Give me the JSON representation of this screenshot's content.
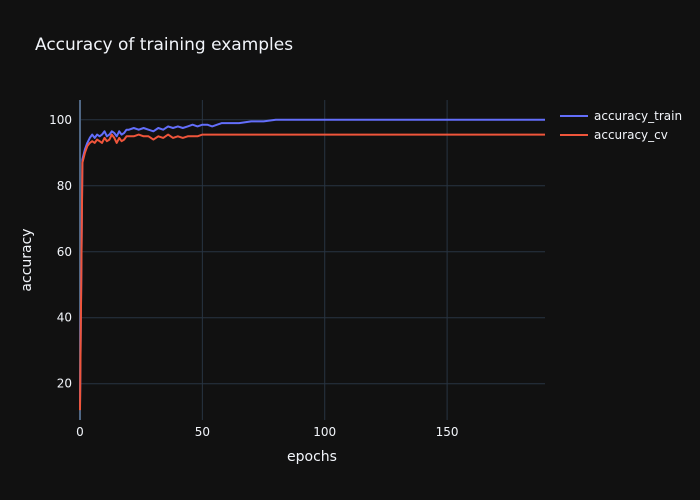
{
  "chart_data": {
    "type": "line",
    "title": "Accuracy of training examples",
    "xlabel": "epochs",
    "ylabel": "accuracy",
    "xlim": [
      0,
      190
    ],
    "ylim": [
      9,
      106
    ],
    "xticks": [
      0,
      50,
      100,
      150
    ],
    "yticks": [
      20,
      40,
      60,
      80,
      100
    ],
    "grid": true,
    "legend_position": "right-top",
    "series": [
      {
        "name": "accuracy_train",
        "color": "#636efa",
        "x": [
          0,
          1,
          2,
          3,
          4,
          5,
          6,
          7,
          8,
          9,
          10,
          11,
          12,
          13,
          14,
          15,
          16,
          17,
          18,
          19,
          20,
          22,
          24,
          26,
          28,
          30,
          32,
          34,
          36,
          38,
          40,
          42,
          44,
          46,
          48,
          50,
          52,
          54,
          56,
          58,
          60,
          65,
          70,
          75,
          80,
          85,
          90,
          100,
          110,
          120,
          130,
          140,
          150,
          160,
          170,
          180,
          190
        ],
        "y": [
          13,
          88,
          91,
          93,
          94.5,
          95.5,
          94.5,
          95.5,
          95,
          95.5,
          96.5,
          95,
          95.5,
          96.5,
          96,
          95,
          96.5,
          95.5,
          96,
          97,
          97,
          97.5,
          97,
          97.5,
          97,
          96.5,
          97.5,
          97,
          98,
          97.5,
          98,
          97.5,
          98,
          98.5,
          98,
          98.5,
          98.5,
          98,
          98.5,
          99,
          99,
          99,
          99.5,
          99.5,
          100,
          100,
          100,
          100,
          100,
          100,
          100,
          100,
          100,
          100,
          100,
          100,
          100
        ]
      },
      {
        "name": "accuracy_cv",
        "color": "#ef553b",
        "x": [
          0,
          1,
          2,
          3,
          4,
          5,
          6,
          7,
          8,
          9,
          10,
          11,
          12,
          13,
          14,
          15,
          16,
          17,
          18,
          19,
          20,
          22,
          24,
          26,
          28,
          30,
          32,
          34,
          36,
          38,
          40,
          42,
          44,
          46,
          48,
          50,
          52,
          54,
          56,
          58,
          60,
          65,
          70,
          75,
          80,
          85,
          90,
          100,
          110,
          120,
          130,
          140,
          150,
          160,
          170,
          180,
          190
        ],
        "y": [
          12,
          87,
          90,
          92,
          93,
          93.5,
          93,
          94,
          93.5,
          93,
          94.5,
          93.5,
          94,
          95.5,
          94.5,
          93,
          94.5,
          93.5,
          94,
          95,
          95,
          95,
          95.5,
          95,
          95,
          94,
          95,
          94.5,
          95.5,
          94.5,
          95,
          94.5,
          95,
          95,
          95,
          95.5,
          95.5,
          95.5,
          95.5,
          95.5,
          95.5,
          95.5,
          95.5,
          95.5,
          95.5,
          95.5,
          95.5,
          95.5,
          95.5,
          95.5,
          95.5,
          95.5,
          95.5,
          95.5,
          95.5,
          95.5,
          95.5
        ]
      }
    ]
  }
}
